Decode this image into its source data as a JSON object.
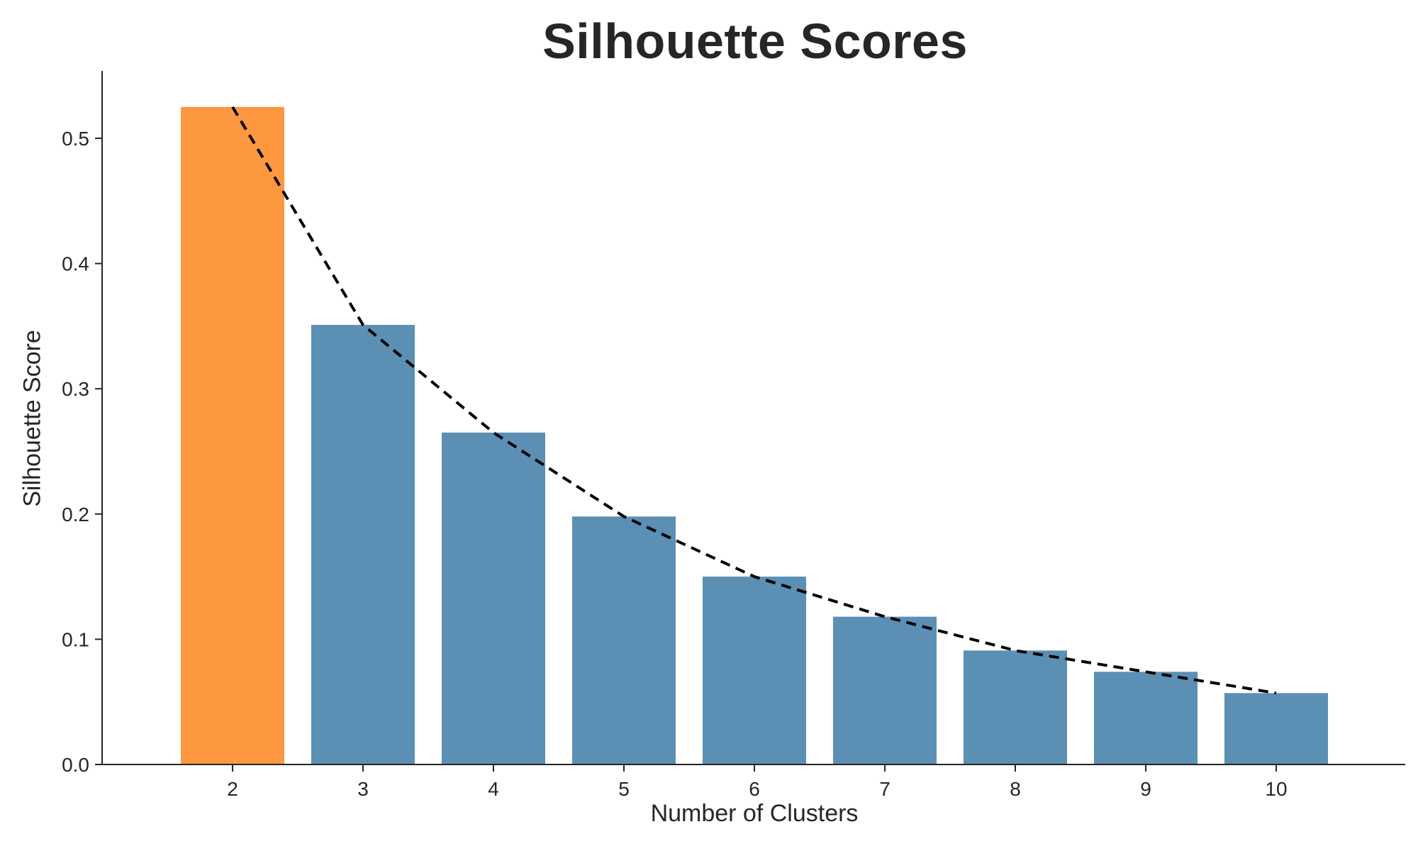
{
  "chart_data": {
    "type": "bar",
    "title": "Silhouette Scores",
    "xlabel": "Number of Clusters",
    "ylabel": "Silhouette Score",
    "categories": [
      "2",
      "3",
      "4",
      "5",
      "6",
      "7",
      "8",
      "9",
      "10"
    ],
    "values": [
      0.525,
      0.351,
      0.265,
      0.198,
      0.15,
      0.118,
      0.091,
      0.074,
      0.057
    ],
    "ylim": [
      0,
      0.55
    ],
    "yticks": [
      0.0,
      0.1,
      0.2,
      0.3,
      0.4,
      0.5
    ],
    "ytick_labels": [
      "0.0",
      "0.1",
      "0.2",
      "0.3",
      "0.4",
      "0.5"
    ],
    "highlight_index": 0,
    "overlay_line": {
      "style": "dashed",
      "color": "#000000",
      "values": [
        0.525,
        0.351,
        0.265,
        0.198,
        0.15,
        0.118,
        0.091,
        0.074,
        0.057
      ]
    },
    "grid": false,
    "legend": "none",
    "colors": {
      "highlight": "#fd9840",
      "bars": "#5b8fb4",
      "axis": "#262626",
      "line": "#000000"
    }
  }
}
